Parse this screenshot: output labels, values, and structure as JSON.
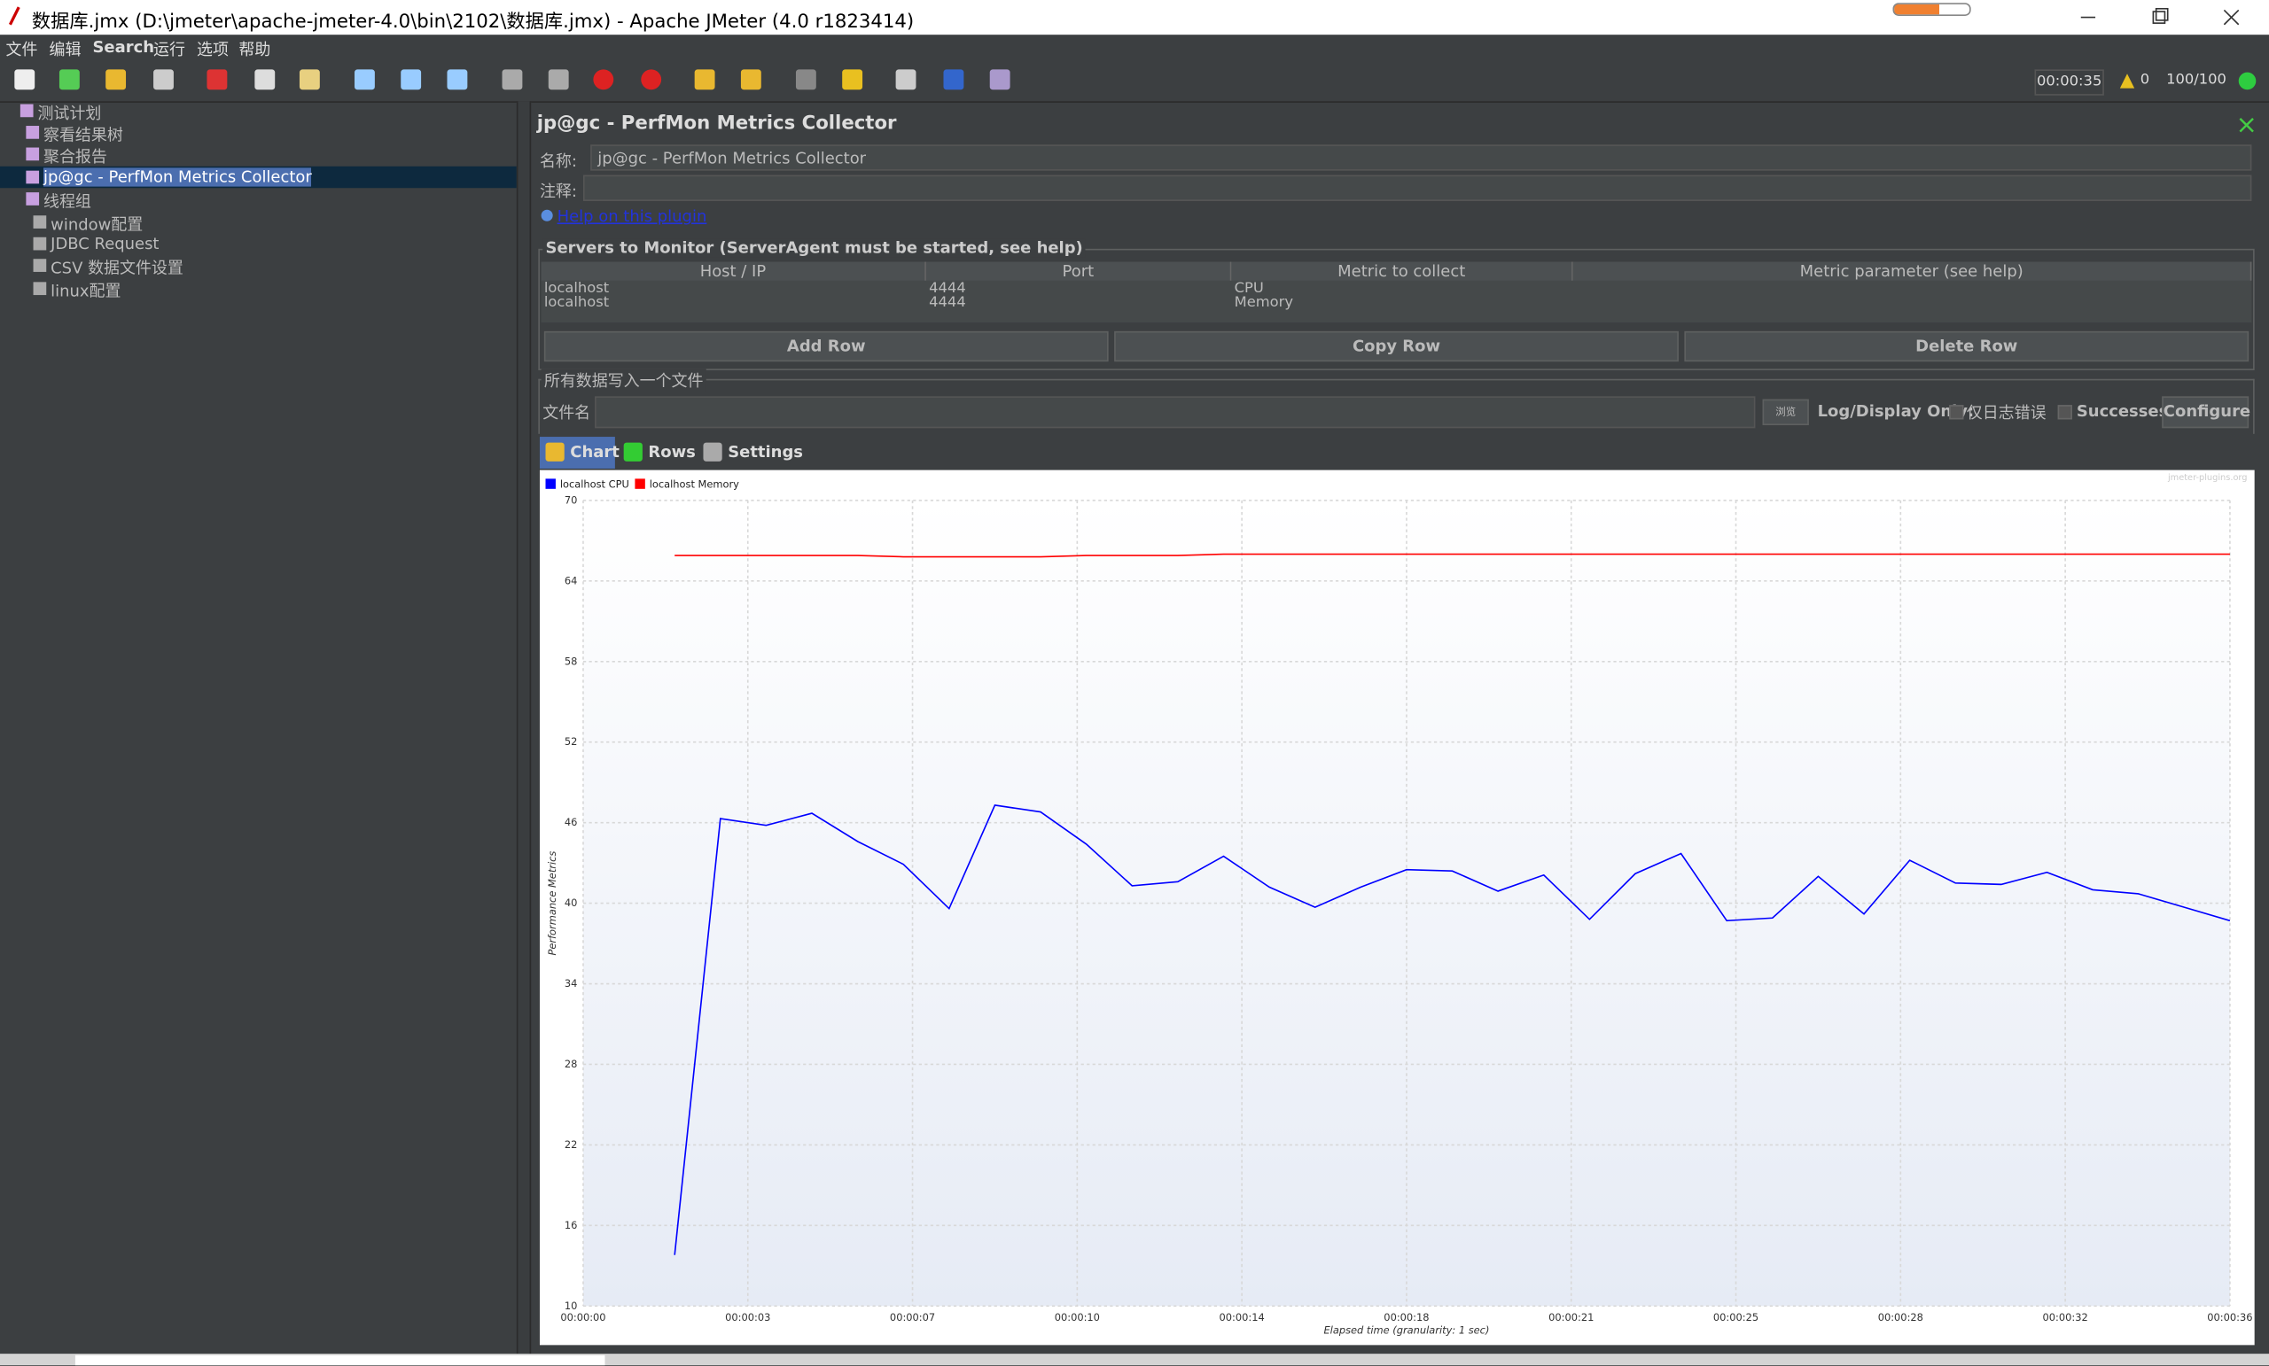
{
  "window": {
    "title": "数据库.jmx (D:\\jmeter\\apache-jmeter-4.0\\bin\\2102\\数据库.jmx) - Apache JMeter (4.0 r1823414)"
  },
  "menu": [
    "文件",
    "编辑",
    "Search",
    "运行",
    "选项",
    "帮助"
  ],
  "status": {
    "timer": "00:00:35",
    "warnings": "0",
    "threads": "100/100"
  },
  "tree": [
    {
      "label": "测试计划",
      "level": 0
    },
    {
      "label": "察看结果树",
      "level": 1
    },
    {
      "label": "聚合报告",
      "level": 1
    },
    {
      "label": "jp@gc - PerfMon Metrics Collector",
      "level": 1,
      "selected": true
    },
    {
      "label": "线程组",
      "level": 1
    },
    {
      "label": "window配置",
      "level": 2
    },
    {
      "label": "JDBC Request",
      "level": 2
    },
    {
      "label": "CSV 数据文件设置",
      "level": 2
    },
    {
      "label": "linux配置",
      "level": 2
    }
  ],
  "panel": {
    "title": "jp@gc - PerfMon Metrics Collector",
    "name_label": "名称:",
    "name_value": "jp@gc - PerfMon Metrics Collector",
    "comment_label": "注释:",
    "help_link": "Help on this plugin",
    "servers_title": "Servers to Monitor (ServerAgent must be started, see help)",
    "table": {
      "headers": [
        "Host / IP",
        "Port",
        "Metric to collect",
        "Metric parameter (see help)"
      ],
      "rows": [
        [
          "localhost",
          "4444",
          "CPU"
        ],
        [
          "localhost",
          "4444",
          "Memory"
        ]
      ]
    },
    "buttons": [
      "Add Row",
      "Copy Row",
      "Delete Row"
    ],
    "file_title": "所有数据写入一个文件",
    "file_label": "文件名",
    "browse": "浏览",
    "log_label": "Log/Display Only:",
    "errors_only": "仅日志错误",
    "successes": "Successes",
    "configure": "Configure",
    "tabs": [
      "Chart",
      "Rows",
      "Settings"
    ]
  },
  "chart_data": {
    "type": "line",
    "watermark": "jmeter-plugins.org",
    "y_label": "Performance Metrics",
    "x_label": "Elapsed time (granularity: 1 sec)",
    "x": [
      2,
      3,
      4,
      5,
      6,
      7,
      8,
      9,
      10,
      11,
      12,
      13,
      14,
      15,
      16,
      17,
      18,
      19,
      20,
      21,
      22,
      23,
      24,
      25,
      26,
      27,
      28,
      29,
      30,
      31,
      32,
      33,
      34,
      35,
      36
    ],
    "series": [
      {
        "name": "localhost CPU",
        "color": "#0000ff",
        "values": [
          13.8,
          46.3,
          45.8,
          46.7,
          44.6,
          42.9,
          39.6,
          47.3,
          46.8,
          44.4,
          41.3,
          41.6,
          43.5,
          41.2,
          39.7,
          41.2,
          42.5,
          42.4,
          40.9,
          42.1,
          38.8,
          42.2,
          43.7,
          38.7,
          38.9,
          42.0,
          39.2,
          43.2,
          41.5,
          41.4,
          42.3,
          41.0,
          40.7,
          39.7,
          38.7
        ]
      },
      {
        "name": "localhost Memory",
        "color": "#ff0000",
        "values": [
          65.9,
          65.9,
          65.9,
          65.9,
          65.9,
          65.8,
          65.8,
          65.8,
          65.8,
          65.9,
          65.9,
          65.9,
          66.0,
          66.0,
          66.0,
          66.0,
          66.0,
          66.0,
          66.0,
          66.0,
          66.0,
          66.0,
          66.0,
          66.0,
          66.0,
          66.0,
          66.0,
          66.0,
          66.0,
          66.0,
          66.0,
          66.0,
          66.0,
          66.0,
          66.0
        ]
      }
    ],
    "xlim": [
      0,
      36
    ],
    "xticks": [
      {
        "value": 0,
        "label": "00:00:00"
      },
      {
        "value": 3.6,
        "label": "00:00:03"
      },
      {
        "value": 7.2,
        "label": "00:00:07"
      },
      {
        "value": 10.8,
        "label": "00:00:10"
      },
      {
        "value": 14.4,
        "label": "00:00:14"
      },
      {
        "value": 18,
        "label": "00:00:18"
      },
      {
        "value": 21.6,
        "label": "00:00:21"
      },
      {
        "value": 25.2,
        "label": "00:00:25"
      },
      {
        "value": 28.8,
        "label": "00:00:28"
      },
      {
        "value": 32.4,
        "label": "00:00:32"
      },
      {
        "value": 36,
        "label": "00:00:36"
      }
    ],
    "ylim": [
      10,
      70
    ],
    "yticks": [
      10,
      16,
      22,
      28,
      34,
      40,
      46,
      52,
      58,
      64,
      70
    ],
    "grid": true
  }
}
